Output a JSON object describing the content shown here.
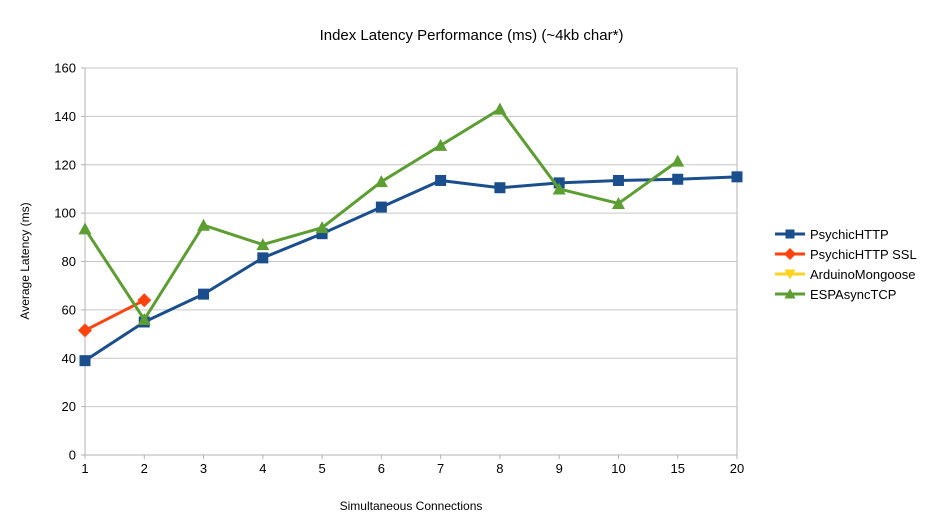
{
  "chart_data": {
    "type": "line",
    "title": "Index Latency Performance (ms) (~4kb char*)",
    "xlabel": "Simultaneous Connections",
    "ylabel": "Average Latency (ms)",
    "ylim": [
      0,
      160
    ],
    "ytick_step": 20,
    "ytick_labels": [
      "0",
      "20",
      "40",
      "60",
      "80",
      "100",
      "120",
      "140",
      "160"
    ],
    "categories": [
      "1",
      "2",
      "3",
      "4",
      "5",
      "6",
      "7",
      "8",
      "9",
      "10",
      "15",
      "20"
    ],
    "grid": true,
    "grid_color": "#c7c7c7",
    "axis_color": "#b3b3b3",
    "text_color": "#000000",
    "legend_position": "right",
    "series": [
      {
        "name": "PsychicHTTP",
        "color": "#1a4e8c",
        "marker": "square",
        "values": [
          39,
          55,
          66.5,
          81.5,
          91.5,
          102.5,
          113.5,
          110.5,
          112.5,
          113.5,
          114,
          115
        ]
      },
      {
        "name": "PsychicHTTP SSL",
        "color": "#ff420e",
        "marker": "diamond",
        "values": [
          51.5,
          64,
          null,
          null,
          null,
          null,
          null,
          null,
          null,
          null,
          null,
          null
        ]
      },
      {
        "name": "ArduinoMongoose",
        "color": "#ffd320",
        "marker": "triangle-down",
        "values": [
          null,
          null,
          null,
          null,
          null,
          null,
          null,
          null,
          null,
          null,
          null,
          null
        ]
      },
      {
        "name": "ESPAsyncTCP",
        "color": "#5c9e31",
        "marker": "triangle-up",
        "values": [
          93.5,
          56,
          95,
          87,
          94,
          113,
          128,
          143,
          110,
          104,
          121.5,
          null
        ]
      }
    ]
  }
}
